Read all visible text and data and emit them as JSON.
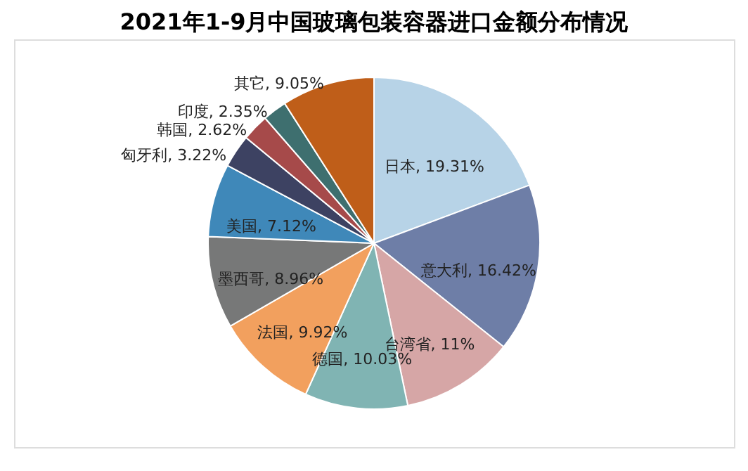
{
  "chart_data": {
    "type": "pie",
    "title": "2021年1-9月中国玻璃包装容器进口金额分布情况",
    "categories": [
      "日本",
      "意大利",
      "台湾省",
      "德国",
      "法国",
      "墨西哥",
      "美国",
      "匈牙利",
      "韩国",
      "印度",
      "其它"
    ],
    "values": [
      19.31,
      16.42,
      11,
      10.03,
      9.92,
      8.96,
      7.12,
      3.22,
      2.62,
      2.35,
      9.05
    ],
    "colors": [
      "#b7d3e7",
      "#6e7ea7",
      "#d6a6a6",
      "#80b4b3",
      "#f2a05e",
      "#777878",
      "#3f88b9",
      "#3d4262",
      "#a64a4a",
      "#3e6f6f",
      "#bf5e19"
    ],
    "value_labels": [
      ", 19.31%",
      ", 16.42%",
      ", 11%",
      ", 10.03%",
      ", 9.92%",
      ", 8.96%",
      ", 7.12%",
      ", 3.22%",
      ", 2.62%",
      ", 2.35%",
      ", 9.05%"
    ],
    "legend": false
  }
}
